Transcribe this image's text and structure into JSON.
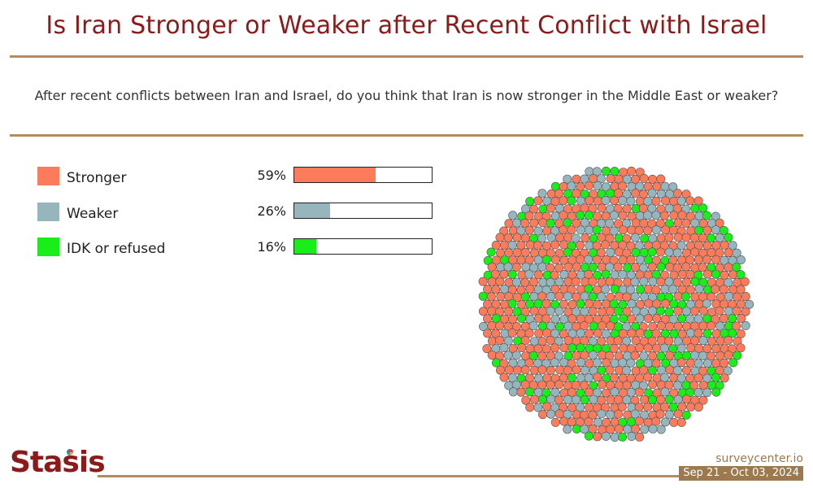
{
  "header": {
    "title": "Is Iran Stronger or Weaker after Recent Conflict with Israel",
    "question": "After recent conflicts between Iran and Israel, do you think that Iran is now stronger in the Middle East or weaker?"
  },
  "footer": {
    "logo_text": "Stasis",
    "source": "surveycenter.io",
    "dates": "Sep 21 - Oct 03, 2024"
  },
  "chart_data": {
    "type": "bar",
    "orientation": "horizontal",
    "categories": [
      "Stronger",
      "Weaker",
      "IDK or refused"
    ],
    "values": [
      59,
      26,
      16
    ],
    "value_labels": [
      "59%",
      "26%",
      "16%"
    ],
    "colors": [
      "#fb7b5b",
      "#97b5bd",
      "#19ee19"
    ],
    "xlim": [
      0,
      100
    ],
    "legend_position": "left",
    "grid": false,
    "companion_visual": "dot-cloud"
  }
}
